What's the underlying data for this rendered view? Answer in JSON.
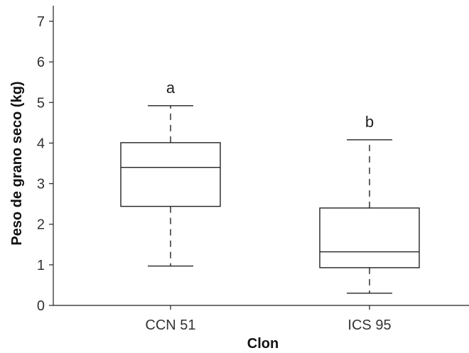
{
  "chart_data": {
    "type": "box",
    "xlabel": "Clon",
    "ylabel": "Peso de grano seco (kg)",
    "ylim": [
      0,
      7
    ],
    "yticks": [
      0,
      1,
      2,
      3,
      4,
      5,
      6,
      7
    ],
    "grid": false,
    "categories": [
      "CCN 51",
      "ICS 95"
    ],
    "boxes": [
      {
        "category": "CCN 51",
        "min": 0.97,
        "q1": 2.44,
        "median": 3.4,
        "q3": 4.01,
        "max": 4.92,
        "significance": "a"
      },
      {
        "category": "ICS 95",
        "min": 0.3,
        "q1": 0.93,
        "median": 1.32,
        "q3": 2.4,
        "max": 4.08,
        "significance": "b"
      }
    ]
  }
}
